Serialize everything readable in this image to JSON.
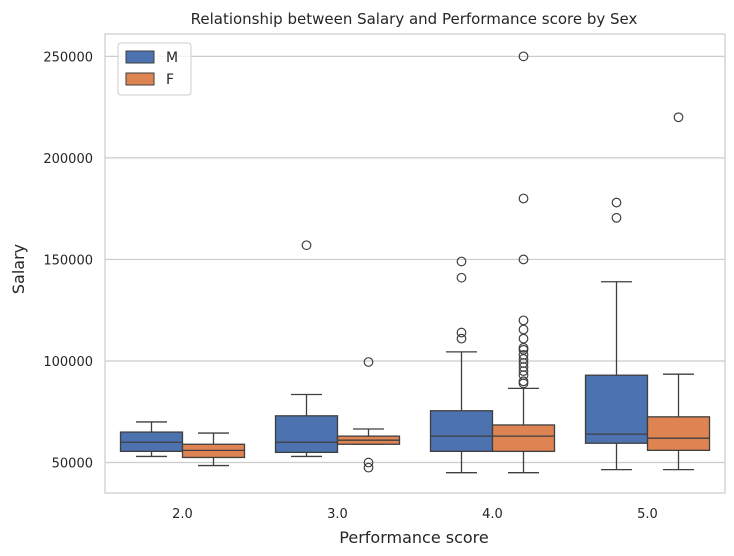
{
  "chart_data": {
    "type": "boxplot",
    "title": "Relationship between Salary and Performance score by Sex",
    "xlabel": "Performance score",
    "ylabel": "Salary",
    "categories": [
      "2.0",
      "3.0",
      "4.0",
      "5.0"
    ],
    "yticks": [
      50000,
      100000,
      150000,
      200000,
      250000
    ],
    "ylim": [
      35000,
      261000
    ],
    "grid": "horizontal",
    "legend_position": "top-left",
    "series": [
      {
        "name": "M",
        "color": "#4c72b0",
        "boxes": [
          {
            "whisker_low": 53000,
            "q1": 55500,
            "median": 60000,
            "q3": 65000,
            "whisker_high": 70000,
            "outliers": []
          },
          {
            "whisker_low": 53000,
            "q1": 55000,
            "median": 60000,
            "q3": 73000,
            "whisker_high": 83500,
            "outliers": [
              157000
            ]
          },
          {
            "whisker_low": 45000,
            "q1": 55500,
            "median": 63000,
            "q3": 75500,
            "whisker_high": 104500,
            "outliers": [
              111000,
              114000,
              141000,
              149000
            ]
          },
          {
            "whisker_low": 46500,
            "q1": 59500,
            "median": 64000,
            "q3": 93000,
            "whisker_high": 139000,
            "outliers": [
              170500,
              178000
            ]
          }
        ]
      },
      {
        "name": "F",
        "color": "#dd8452",
        "boxes": [
          {
            "whisker_low": 48500,
            "q1": 52500,
            "median": 56000,
            "q3": 59000,
            "whisker_high": 64500,
            "outliers": []
          },
          {
            "whisker_low": 59000,
            "q1": 59000,
            "median": 61000,
            "q3": 63000,
            "whisker_high": 66500,
            "outliers": [
              47500,
              50000,
              99500
            ]
          },
          {
            "whisker_low": 45000,
            "q1": 55500,
            "median": 63000,
            "q3": 68500,
            "whisker_high": 86500,
            "outliers": [
              89000,
              90000,
              93000,
              95000,
              97000,
              99000,
              101000,
              103000,
              105500,
              106500,
              111000,
              115500,
              120000,
              150000,
              180000,
              250000
            ]
          },
          {
            "whisker_low": 46500,
            "q1": 56000,
            "median": 62000,
            "q3": 72500,
            "whisker_high": 93500,
            "outliers": [
              220000
            ]
          }
        ]
      }
    ]
  }
}
